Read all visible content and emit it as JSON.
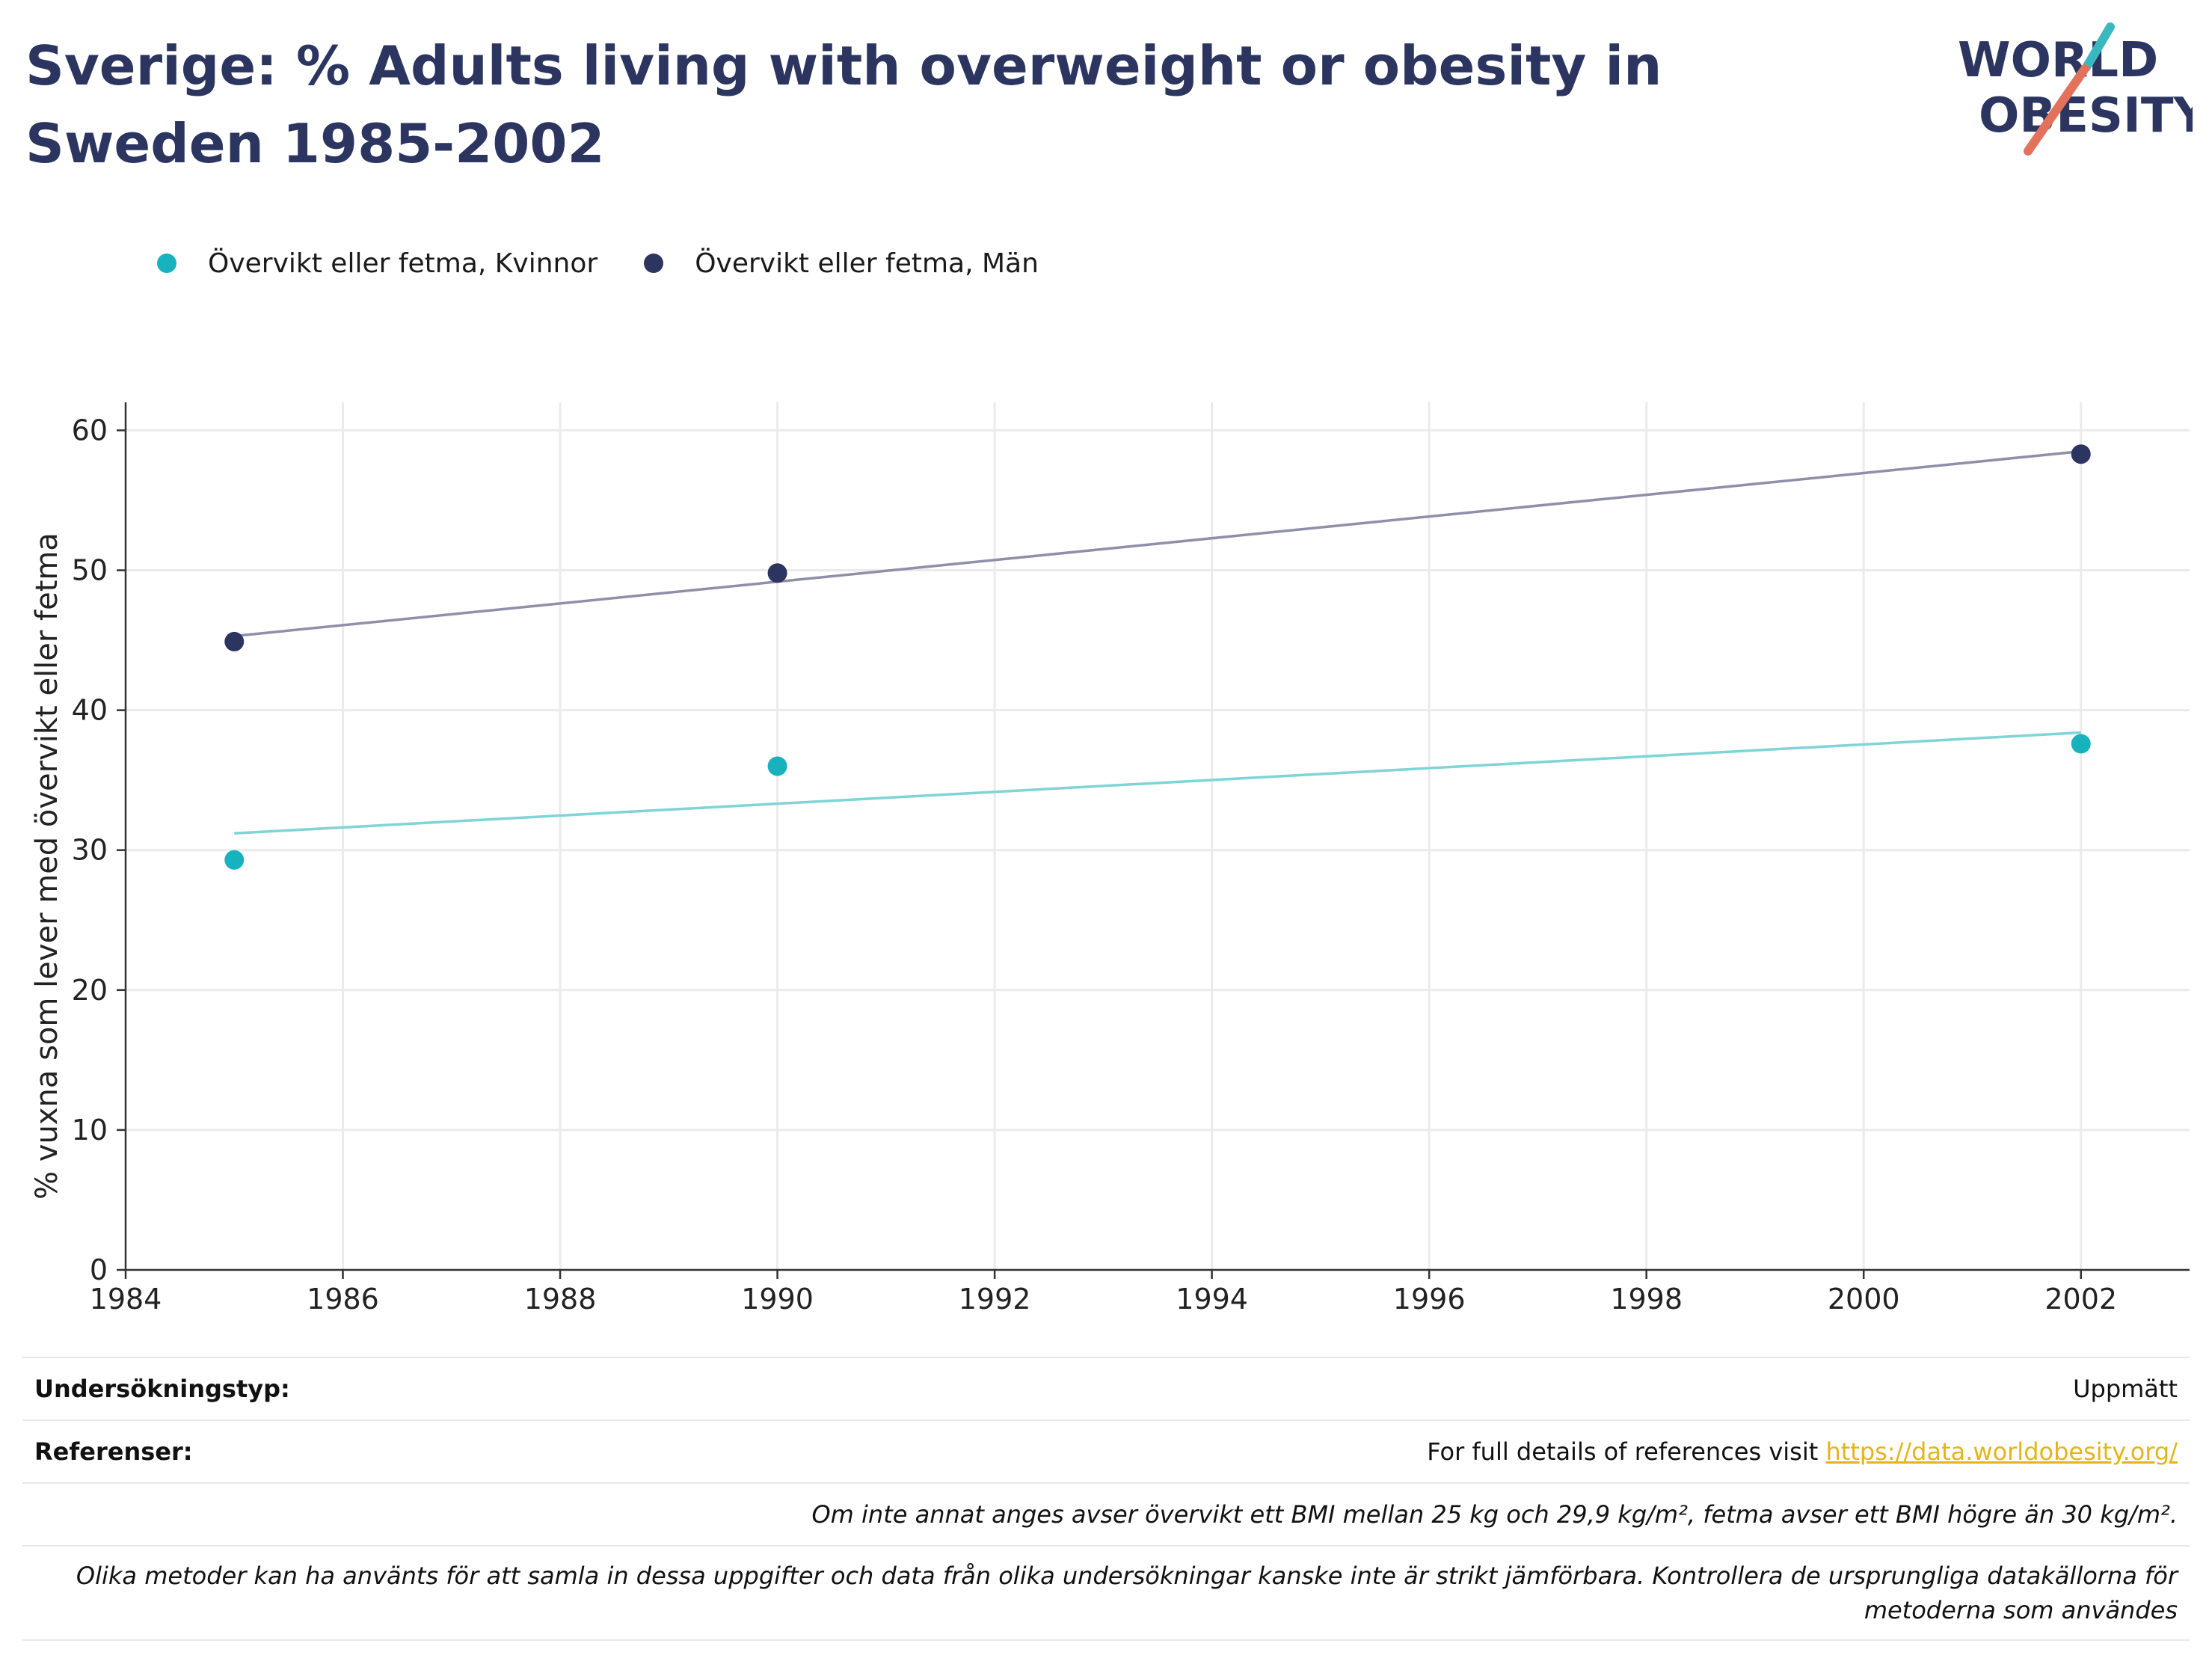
{
  "title": "Sverige: % Adults living with overweight or obesity in Sweden 1985-2002",
  "logo": {
    "line1": "WORLD",
    "line2": "OBESITY",
    "accent1": "#3ab8c0",
    "accent2": "#e2725b",
    "text_color": "#2b3560"
  },
  "colors": {
    "women": "#17b2bd",
    "men": "#2b3560",
    "women_trend": "#7fd4d6",
    "men_trend": "#8f90a8",
    "title": "#2b3560"
  },
  "chart_data": {
    "type": "scatter",
    "ylabel": "% vuxna som lever med övervikt eller fetma",
    "xlabel": "",
    "xlim": [
      1984,
      2003
    ],
    "ylim": [
      0,
      62
    ],
    "x_ticks": [
      1984,
      1986,
      1988,
      1990,
      1992,
      1994,
      1996,
      1998,
      2000,
      2002
    ],
    "y_ticks": [
      0,
      10,
      20,
      30,
      40,
      50,
      60
    ],
    "grid": true,
    "legend_position": "top-left",
    "series": [
      {
        "name": "Övervikt eller fetma, Kvinnor",
        "x": [
          1985,
          1990,
          2002
        ],
        "values": [
          29.3,
          36.0,
          37.6
        ],
        "trend": [
          31.2,
          38.4
        ]
      },
      {
        "name": "Övervikt eller fetma, Män",
        "x": [
          1985,
          1990,
          2002
        ],
        "values": [
          44.9,
          49.8,
          58.3
        ],
        "trend": [
          45.3,
          58.5
        ]
      }
    ]
  },
  "footer": {
    "survey_label": "Undersökningstyp:",
    "survey_value": "Uppmätt",
    "references_label": "Referenser:",
    "references_text": "For full details of references visit ",
    "references_link": "https://data.worldobesity.org/",
    "note_bmi": "Om inte annat anges avser övervikt ett BMI mellan 25 kg och 29,9 kg/m², fetma avser ett BMI högre än 30 kg/m².",
    "note_methods": "Olika metoder kan ha använts för att samla in dessa uppgifter och data från olika undersökningar kanske inte är strikt jämförbara. Kontrollera de ursprungliga datakällorna för metoderna som användes"
  }
}
